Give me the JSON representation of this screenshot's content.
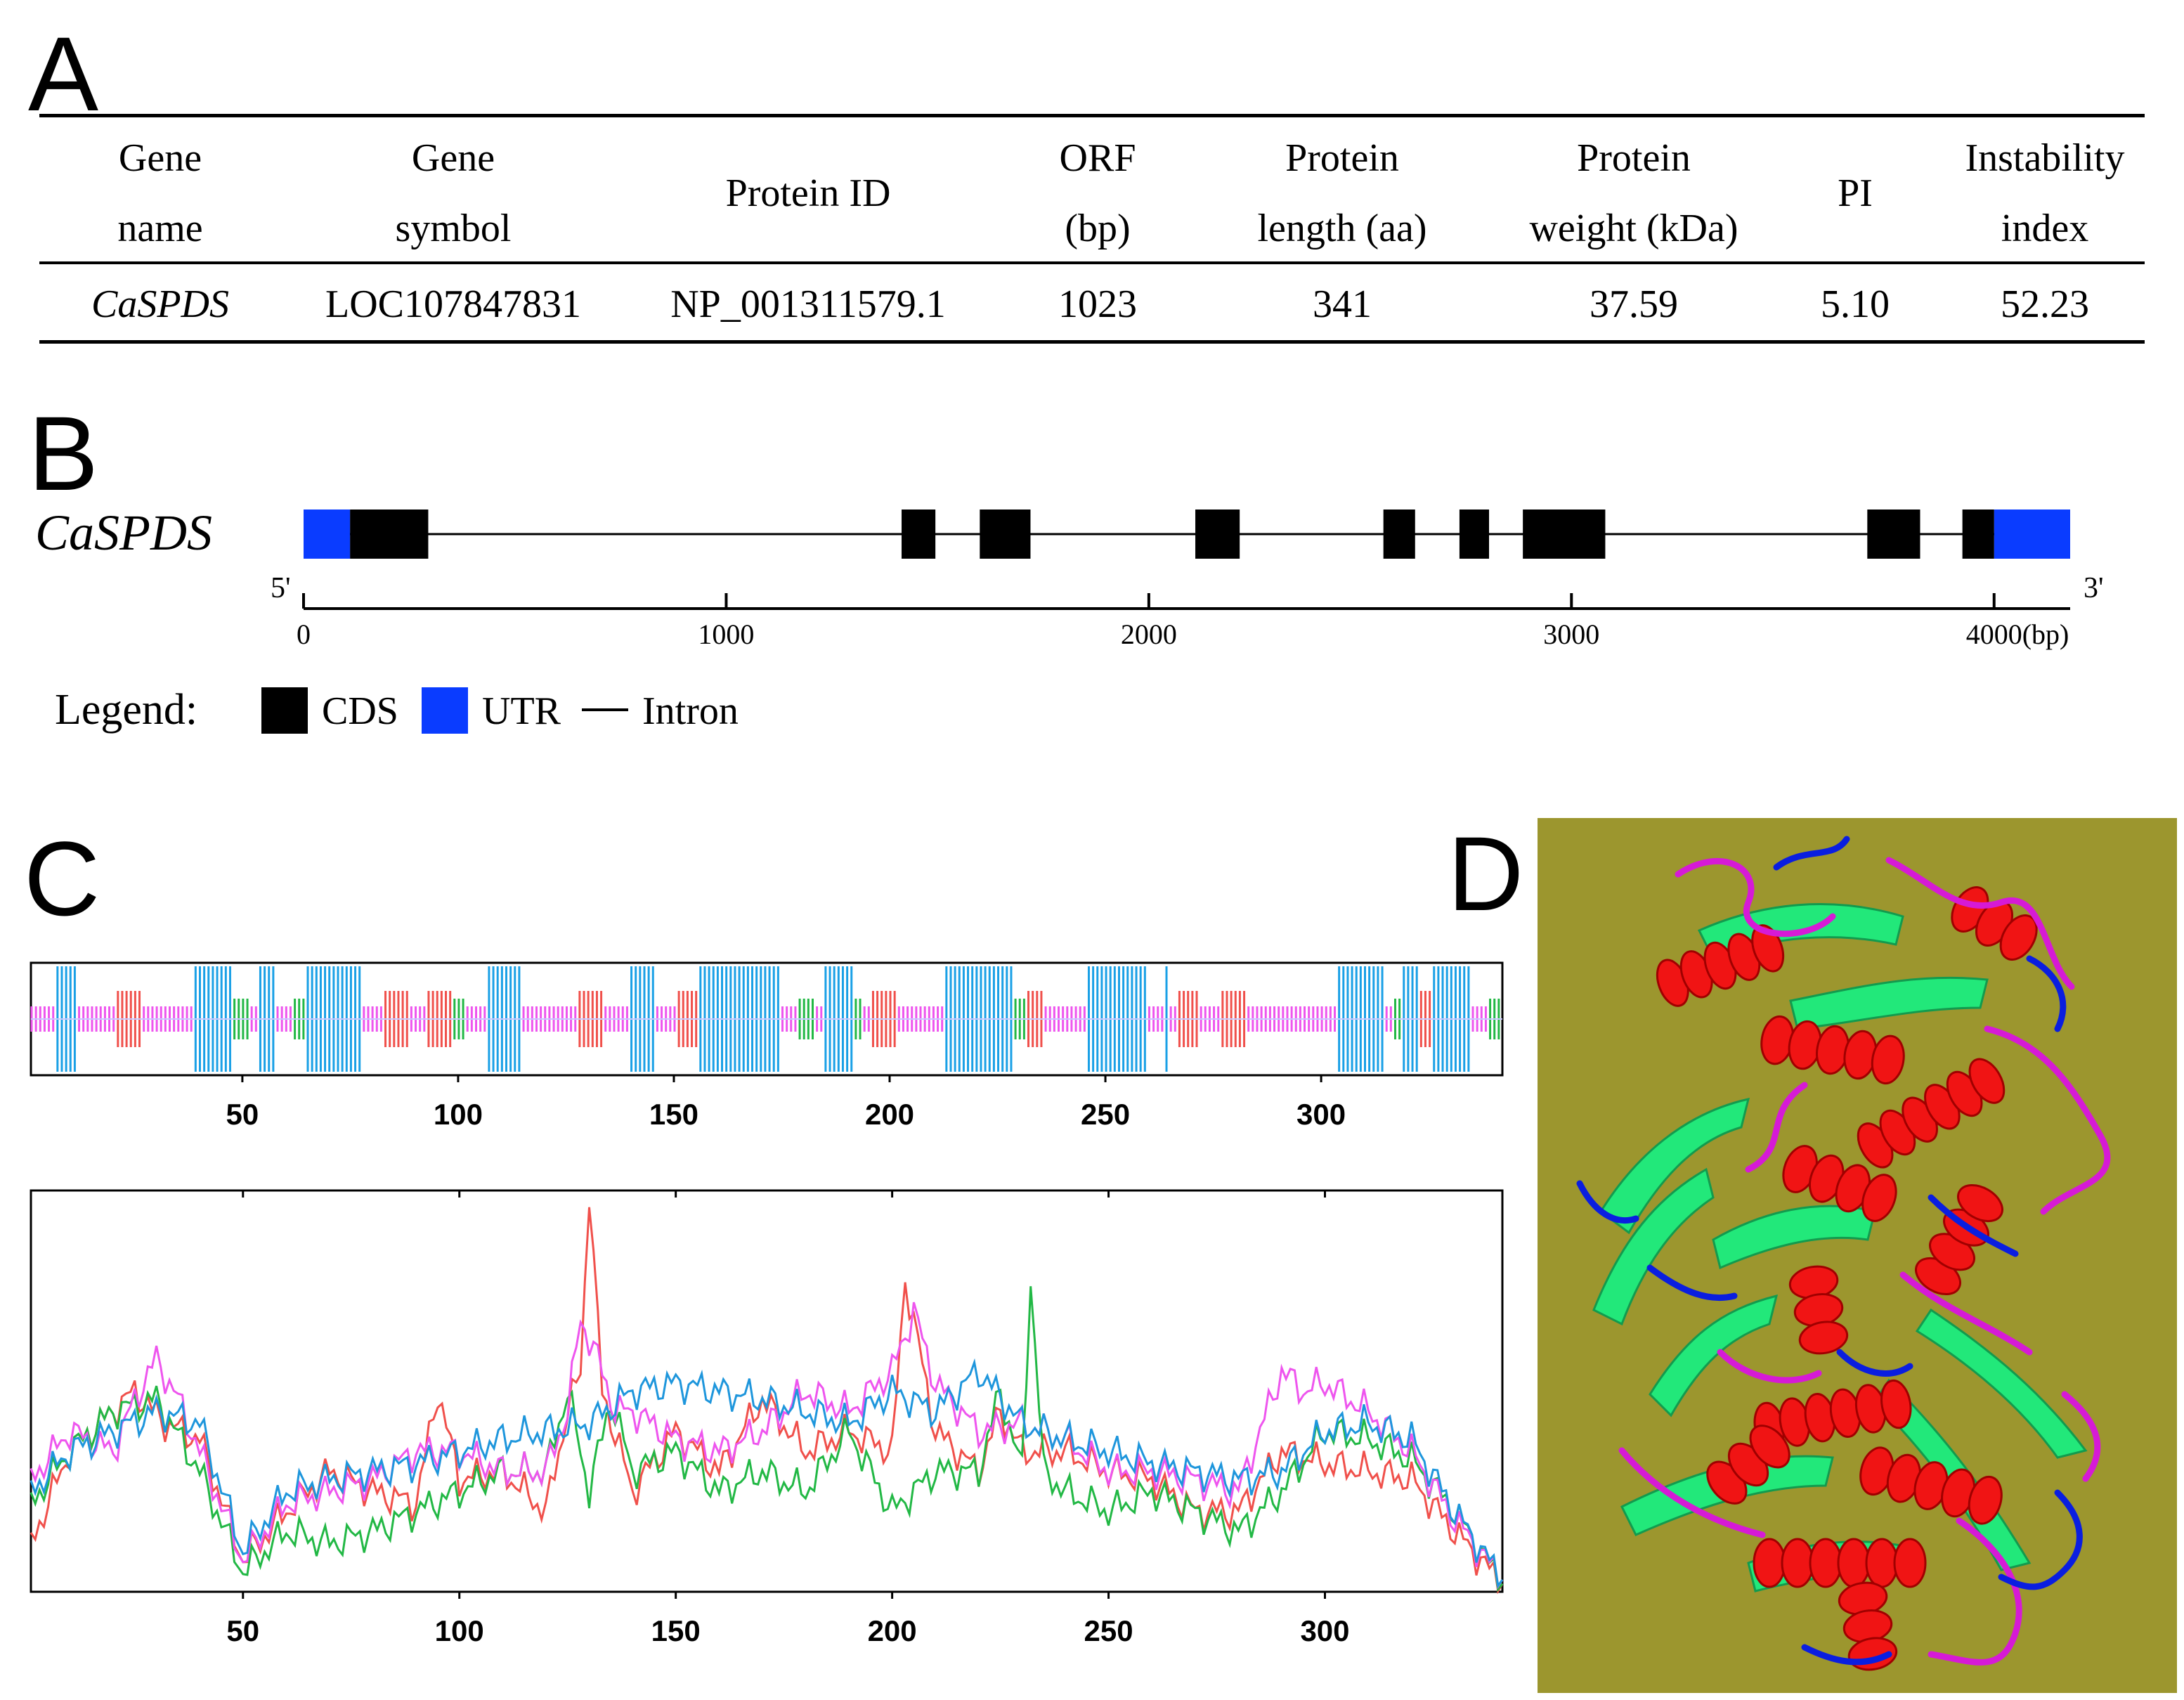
{
  "panels": {
    "A": "A",
    "B": "B",
    "C": "C",
    "D": "D"
  },
  "table": {
    "headers": [
      [
        "Gene",
        "name"
      ],
      [
        "Gene",
        "symbol"
      ],
      [
        "Protein ID"
      ],
      [
        "ORF",
        "(bp)"
      ],
      [
        "Protein",
        "length (aa)"
      ],
      [
        "Protein",
        "weight (kDa)"
      ],
      [
        "PI"
      ],
      [
        "Instability",
        "index"
      ]
    ],
    "row": [
      "CaSPDS",
      "LOC107847831",
      "NP_001311579.1",
      "1023",
      "341",
      "37.59",
      "5.10",
      "52.23"
    ]
  },
  "gene_structure": {
    "gene": "CaSPDS",
    "five_prime": "5'",
    "three_prime": "3'",
    "axis_ticks": [
      "0",
      "1000",
      "2000",
      "3000",
      "4000"
    ],
    "axis_unit": "(bp)",
    "length": 4180,
    "utr": [
      [
        0,
        110
      ],
      [
        4000,
        4180
      ]
    ],
    "cds": [
      [
        110,
        295
      ],
      [
        1415,
        1495
      ],
      [
        1600,
        1720
      ],
      [
        2110,
        2215
      ],
      [
        2555,
        2630
      ],
      [
        2735,
        2805
      ],
      [
        2885,
        3080
      ],
      [
        3700,
        3825
      ],
      [
        3925,
        4000
      ]
    ],
    "legend_title": "Legend:",
    "legend": [
      {
        "label": "CDS",
        "type": "box",
        "color": "#000000"
      },
      {
        "label": "UTR",
        "type": "box",
        "color": "#0a3cff"
      },
      {
        "label": "Intron",
        "type": "line",
        "color": "#000000"
      }
    ]
  },
  "chart_data": [
    {
      "type": "bar",
      "name_hint": "secondary-structure",
      "xlim": [
        1,
        341
      ],
      "x_ticks": [
        "50",
        "100",
        "150",
        "200",
        "250",
        "300"
      ],
      "colors": {
        "helix": "#19a0e6",
        "strand": "#f0504b",
        "turn": "#22b845",
        "coil": "#ee55ee"
      },
      "segments": [
        {
          "type": "coil",
          "start": 1,
          "end": 6
        },
        {
          "type": "helix",
          "start": 7,
          "end": 11
        },
        {
          "type": "coil",
          "start": 12,
          "end": 20
        },
        {
          "type": "strand",
          "start": 21,
          "end": 26
        },
        {
          "type": "coil",
          "start": 27,
          "end": 38
        },
        {
          "type": "helix",
          "start": 39,
          "end": 47
        },
        {
          "type": "turn",
          "start": 48,
          "end": 51
        },
        {
          "type": "coil",
          "start": 52,
          "end": 53
        },
        {
          "type": "helix",
          "start": 54,
          "end": 57
        },
        {
          "type": "coil",
          "start": 58,
          "end": 61
        },
        {
          "type": "turn",
          "start": 62,
          "end": 64
        },
        {
          "type": "helix",
          "start": 65,
          "end": 77
        },
        {
          "type": "coil",
          "start": 78,
          "end": 82
        },
        {
          "type": "strand",
          "start": 83,
          "end": 88
        },
        {
          "type": "coil",
          "start": 89,
          "end": 92
        },
        {
          "type": "strand",
          "start": 93,
          "end": 98
        },
        {
          "type": "turn",
          "start": 99,
          "end": 101
        },
        {
          "type": "coil",
          "start": 102,
          "end": 106
        },
        {
          "type": "helix",
          "start": 107,
          "end": 114
        },
        {
          "type": "coil",
          "start": 115,
          "end": 127
        },
        {
          "type": "strand",
          "start": 128,
          "end": 133
        },
        {
          "type": "coil",
          "start": 134,
          "end": 139
        },
        {
          "type": "helix",
          "start": 140,
          "end": 145
        },
        {
          "type": "coil",
          "start": 146,
          "end": 150
        },
        {
          "type": "strand",
          "start": 151,
          "end": 155
        },
        {
          "type": "helix",
          "start": 156,
          "end": 174
        },
        {
          "type": "coil",
          "start": 175,
          "end": 178
        },
        {
          "type": "turn",
          "start": 179,
          "end": 182
        },
        {
          "type": "coil",
          "start": 183,
          "end": 184
        },
        {
          "type": "helix",
          "start": 185,
          "end": 191
        },
        {
          "type": "turn",
          "start": 192,
          "end": 193
        },
        {
          "type": "coil",
          "start": 194,
          "end": 195
        },
        {
          "type": "strand",
          "start": 196,
          "end": 201
        },
        {
          "type": "coil",
          "start": 202,
          "end": 212
        },
        {
          "type": "helix",
          "start": 213,
          "end": 228
        },
        {
          "type": "turn",
          "start": 229,
          "end": 231
        },
        {
          "type": "strand",
          "start": 232,
          "end": 235
        },
        {
          "type": "coil",
          "start": 236,
          "end": 245
        },
        {
          "type": "helix",
          "start": 246,
          "end": 259
        },
        {
          "type": "coil",
          "start": 260,
          "end": 263
        },
        {
          "type": "helix",
          "start": 264,
          "end": 264
        },
        {
          "type": "coil",
          "start": 265,
          "end": 266
        },
        {
          "type": "strand",
          "start": 267,
          "end": 271
        },
        {
          "type": "coil",
          "start": 272,
          "end": 276
        },
        {
          "type": "strand",
          "start": 277,
          "end": 282
        },
        {
          "type": "coil",
          "start": 283,
          "end": 303
        },
        {
          "type": "helix",
          "start": 304,
          "end": 314
        },
        {
          "type": "coil",
          "start": 315,
          "end": 316
        },
        {
          "type": "turn",
          "start": 317,
          "end": 318
        },
        {
          "type": "helix",
          "start": 319,
          "end": 322
        },
        {
          "type": "strand",
          "start": 323,
          "end": 325
        },
        {
          "type": "helix",
          "start": 326,
          "end": 334
        },
        {
          "type": "coil",
          "start": 335,
          "end": 338
        },
        {
          "type": "turn",
          "start": 339,
          "end": 341
        }
      ]
    },
    {
      "type": "line",
      "name_hint": "secondary-structure-probability",
      "xlim": [
        1,
        341
      ],
      "ylim": [
        0,
        1
      ],
      "x_ticks": [
        "50",
        "100",
        "150",
        "200",
        "250",
        "300"
      ],
      "series": [
        {
          "color": "#f0504b",
          "x": [
            1,
            10,
            20,
            25,
            32,
            40,
            50,
            60,
            70,
            80,
            90,
            95,
            100,
            110,
            120,
            125,
            128,
            130,
            133,
            140,
            150,
            160,
            170,
            180,
            190,
            200,
            203,
            206,
            210,
            220,
            225,
            230,
            240,
            250,
            260,
            270,
            280,
            290,
            300,
            310,
            320,
            330,
            341
          ],
          "y": [
            0.12,
            0.35,
            0.45,
            0.5,
            0.42,
            0.38,
            0.08,
            0.2,
            0.3,
            0.25,
            0.22,
            0.5,
            0.28,
            0.3,
            0.2,
            0.45,
            0.55,
            1.0,
            0.5,
            0.25,
            0.4,
            0.3,
            0.48,
            0.35,
            0.4,
            0.35,
            0.78,
            0.62,
            0.4,
            0.3,
            0.45,
            0.35,
            0.35,
            0.3,
            0.28,
            0.2,
            0.2,
            0.35,
            0.32,
            0.3,
            0.28,
            0.15,
            0.02
          ]
        },
        {
          "color": "#22b845",
          "x": [
            1,
            10,
            20,
            30,
            40,
            50,
            60,
            70,
            80,
            90,
            100,
            110,
            120,
            125,
            130,
            135,
            140,
            150,
            160,
            170,
            180,
            190,
            200,
            210,
            220,
            225,
            230,
            232,
            235,
            240,
            250,
            260,
            270,
            280,
            290,
            300,
            310,
            320,
            330,
            341
          ],
          "y": [
            0.22,
            0.35,
            0.45,
            0.48,
            0.3,
            0.05,
            0.15,
            0.12,
            0.15,
            0.2,
            0.25,
            0.3,
            0.3,
            0.5,
            0.25,
            0.48,
            0.3,
            0.35,
            0.25,
            0.3,
            0.25,
            0.4,
            0.2,
            0.3,
            0.3,
            0.5,
            0.3,
            0.78,
            0.3,
            0.25,
            0.2,
            0.25,
            0.2,
            0.15,
            0.25,
            0.4,
            0.38,
            0.33,
            0.2,
            0.02
          ]
        },
        {
          "color": "#ee55ee",
          "x": [
            1,
            10,
            20,
            25,
            30,
            35,
            40,
            50,
            60,
            70,
            80,
            90,
            100,
            110,
            120,
            125,
            128,
            132,
            136,
            140,
            150,
            160,
            170,
            180,
            190,
            200,
            205,
            210,
            220,
            230,
            240,
            250,
            260,
            270,
            280,
            290,
            295,
            300,
            310,
            320,
            330,
            341
          ],
          "y": [
            0.28,
            0.4,
            0.35,
            0.48,
            0.58,
            0.48,
            0.35,
            0.08,
            0.22,
            0.25,
            0.28,
            0.35,
            0.35,
            0.3,
            0.3,
            0.45,
            0.68,
            0.58,
            0.45,
            0.45,
            0.38,
            0.35,
            0.4,
            0.5,
            0.45,
            0.55,
            0.7,
            0.52,
            0.4,
            0.42,
            0.38,
            0.3,
            0.3,
            0.28,
            0.25,
            0.55,
            0.5,
            0.52,
            0.45,
            0.35,
            0.18,
            0.03
          ]
        },
        {
          "color": "#1e96dc",
          "x": [
            1,
            10,
            20,
            30,
            40,
            50,
            60,
            70,
            80,
            90,
            100,
            110,
            120,
            130,
            140,
            150,
            160,
            170,
            180,
            190,
            200,
            210,
            220,
            230,
            240,
            250,
            260,
            270,
            280,
            290,
            300,
            310,
            320,
            330,
            341
          ],
          "y": [
            0.25,
            0.35,
            0.4,
            0.45,
            0.42,
            0.1,
            0.25,
            0.28,
            0.3,
            0.32,
            0.35,
            0.38,
            0.4,
            0.42,
            0.5,
            0.52,
            0.5,
            0.48,
            0.45,
            0.42,
            0.5,
            0.45,
            0.55,
            0.42,
            0.38,
            0.35,
            0.32,
            0.3,
            0.28,
            0.3,
            0.4,
            0.42,
            0.38,
            0.2,
            0.03
          ]
        }
      ]
    }
  ],
  "structure_3d": {
    "background": "#9c962e",
    "colors": {
      "helix": "#f01414",
      "sheet": "#22e87a",
      "loop_magenta": "#d61ad6",
      "loop_blue": "#0a1ee0"
    }
  }
}
